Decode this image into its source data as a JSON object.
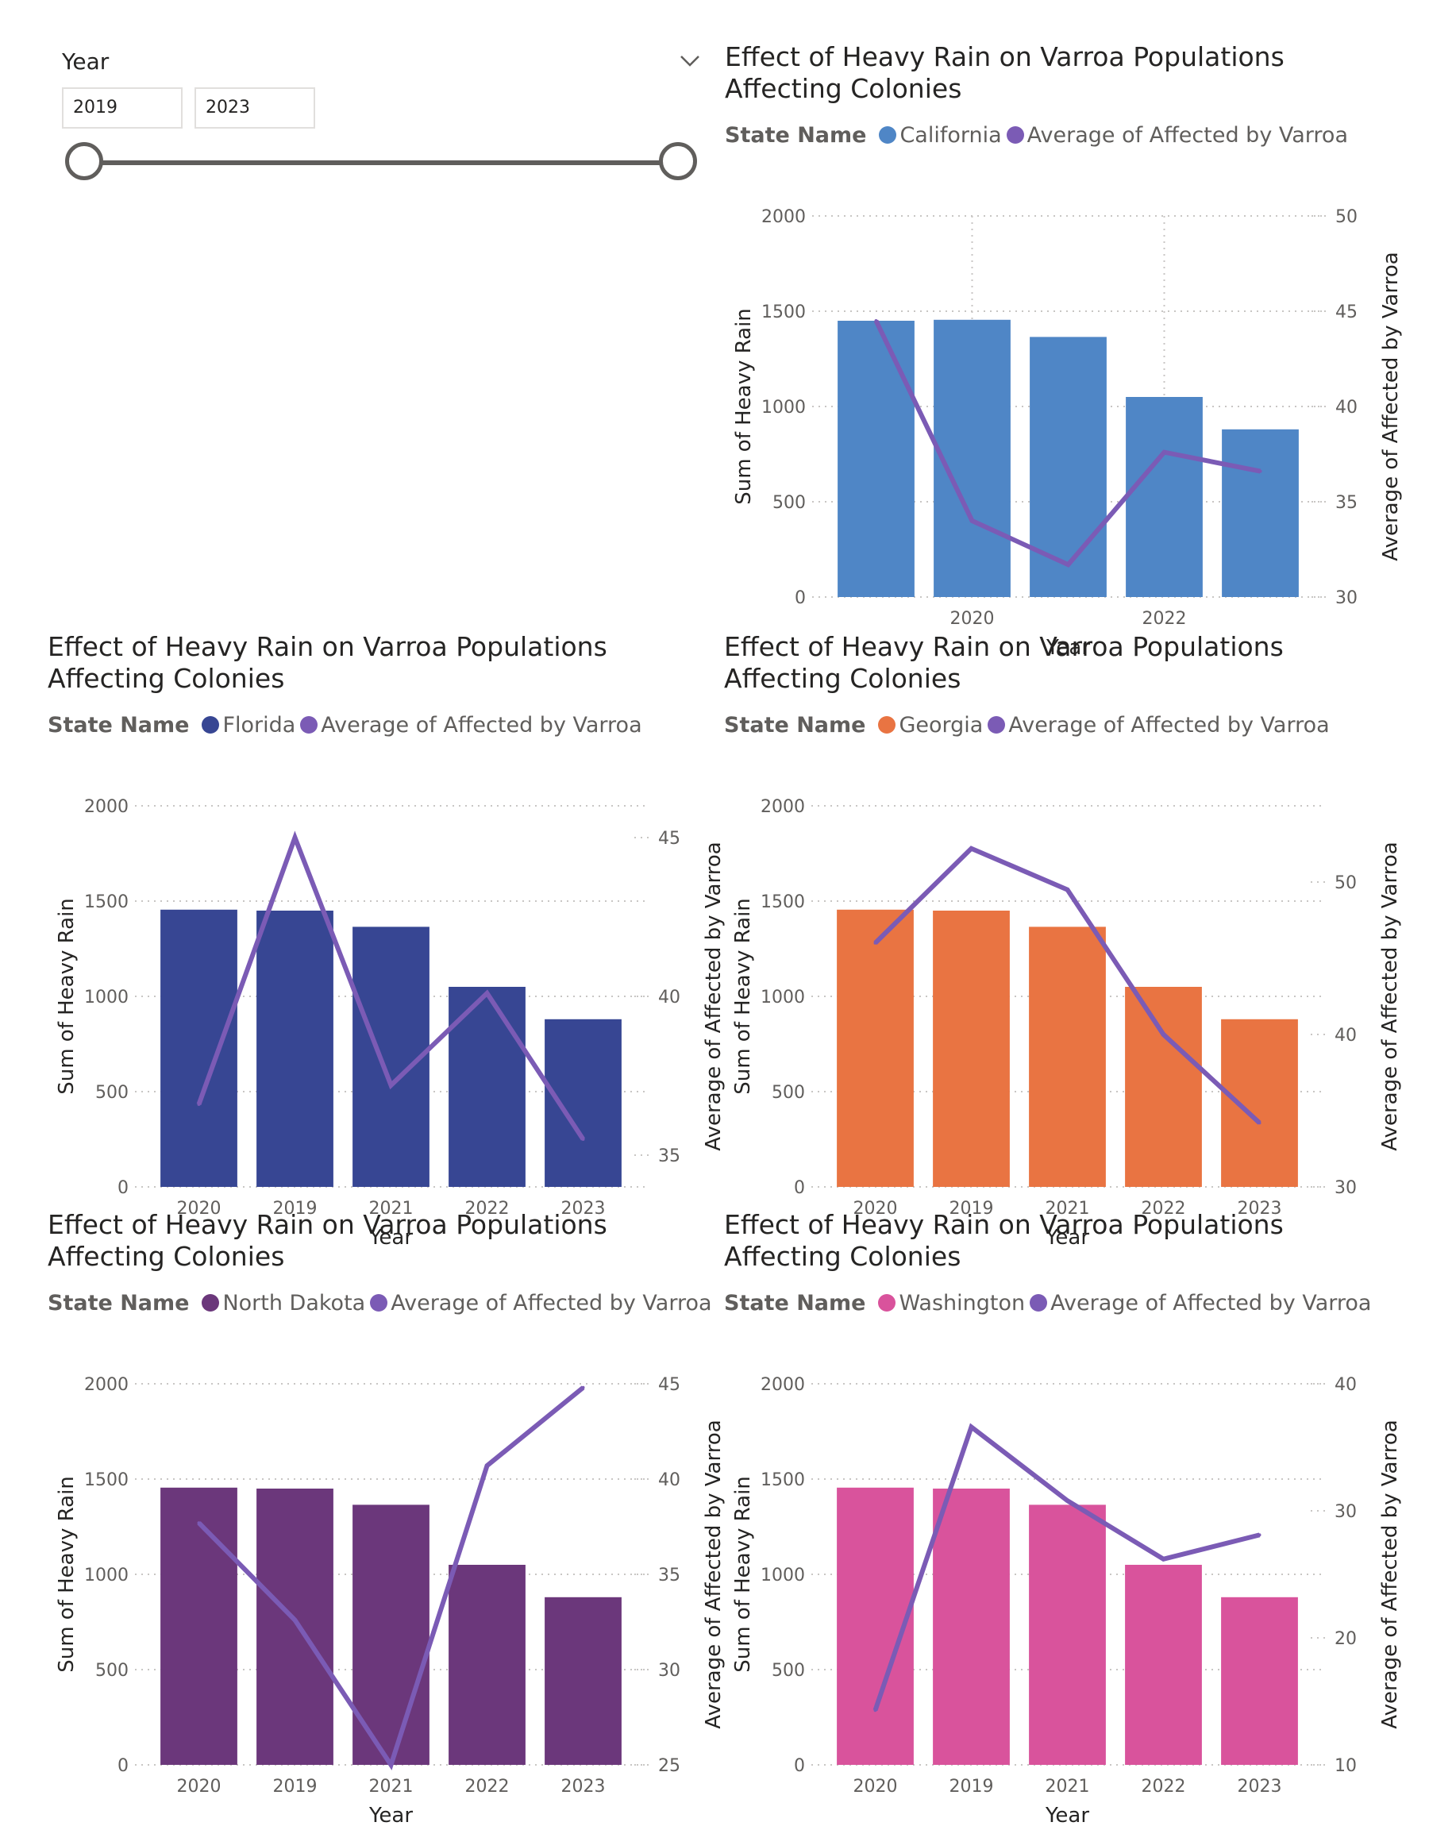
{
  "slicer": {
    "title": "Year",
    "from_value": "2019",
    "to_value": "2023",
    "range": [
      2019,
      2023
    ],
    "icons": [
      "chevron-down-icon"
    ]
  },
  "colors": {
    "line": "#7B5BB5",
    "grid": "#c8c6c4",
    "axis_text": "#605e5c",
    "title_text": "#252423"
  },
  "chart_data": [
    {
      "type": "bar",
      "title": "Effect of Heavy Rain on Varroa Populations Affecting Colonies",
      "legend_title": "State Name",
      "legend_items": [
        "California",
        "Average of Affected by Varroa"
      ],
      "bar_color": "#4f86c6",
      "categories": [
        "",
        "2020",
        "",
        "2022",
        ""
      ],
      "series": [
        {
          "name": "California",
          "axis": "left",
          "values": [
            1450,
            1455,
            1365,
            1050,
            880
          ]
        },
        {
          "name": "Average of Affected by Varroa",
          "axis": "right",
          "kind": "line",
          "values": [
            44.5,
            34.0,
            31.7,
            37.6,
            36.6
          ]
        }
      ],
      "xlabel": "Year",
      "ylabel": "Sum of Heavy Rain",
      "y2label": "Average of Affected by Varroa",
      "ylim": [
        0,
        2000
      ],
      "yticks": [
        "0",
        "500",
        "1000",
        "1500",
        "2000"
      ],
      "y2lim": [
        30,
        50
      ],
      "y2ticks": [
        "30",
        "35",
        "40",
        "45",
        "50"
      ],
      "vertical_gridlines": true
    },
    {
      "type": "bar",
      "title": "Effect of Heavy Rain on Varroa Populations Affecting Colonies",
      "legend_title": "State Name",
      "legend_items": [
        "Florida",
        "Average of Affected by Varroa"
      ],
      "bar_color": "#374693",
      "categories": [
        "2020",
        "2019",
        "2021",
        "2022",
        "2023"
      ],
      "series": [
        {
          "name": "Florida",
          "axis": "left",
          "values": [
            1455,
            1450,
            1365,
            1050,
            880
          ]
        },
        {
          "name": "Average of Affected by Varroa",
          "axis": "right",
          "kind": "line",
          "values": [
            36.6,
            45.0,
            37.2,
            40.1,
            35.5
          ]
        }
      ],
      "xlabel": "Year",
      "ylabel": "Sum of Heavy Rain",
      "y2label": "Average of Affected by Varroa",
      "ylim": [
        0,
        2000
      ],
      "yticks": [
        "0",
        "500",
        "1000",
        "1500",
        "2000"
      ],
      "y2lim": [
        34,
        46
      ],
      "y2ticks": [
        "35",
        "40",
        "45"
      ],
      "vertical_gridlines": false
    },
    {
      "type": "bar",
      "title": "Effect of Heavy Rain on Varroa Populations Affecting Colonies",
      "legend_title": "State Name",
      "legend_items": [
        "Georgia",
        "Average of Affected by Varroa"
      ],
      "bar_color": "#e97442",
      "categories": [
        "2020",
        "2019",
        "2021",
        "2022",
        "2023"
      ],
      "series": [
        {
          "name": "Georgia",
          "axis": "left",
          "values": [
            1455,
            1450,
            1365,
            1050,
            880
          ]
        },
        {
          "name": "Average of Affected by Varroa",
          "axis": "right",
          "kind": "line",
          "values": [
            46.0,
            52.2,
            49.5,
            40.0,
            34.2
          ]
        }
      ],
      "xlabel": "Year",
      "ylabel": "Sum of Heavy Rain",
      "y2label": "Average of Affected by Varroa",
      "ylim": [
        0,
        2000
      ],
      "yticks": [
        "0",
        "500",
        "1000",
        "1500",
        "2000"
      ],
      "y2lim": [
        30,
        55
      ],
      "y2ticks": [
        "30",
        "40",
        "50"
      ],
      "vertical_gridlines": false
    },
    {
      "type": "bar",
      "title": "Effect of Heavy Rain on Varroa Populations Affecting Colonies",
      "legend_title": "State Name",
      "legend_items": [
        "North Dakota",
        "Average of Affected by Varroa"
      ],
      "bar_color": "#6b377b",
      "categories": [
        "2020",
        "2019",
        "2021",
        "2022",
        "2023"
      ],
      "series": [
        {
          "name": "North Dakota",
          "axis": "left",
          "values": [
            1455,
            1450,
            1365,
            1050,
            880
          ]
        },
        {
          "name": "Average of Affected by Varroa",
          "axis": "right",
          "kind": "line",
          "values": [
            37.7,
            32.6,
            25.0,
            40.7,
            44.8
          ]
        }
      ],
      "xlabel": "Year",
      "ylabel": "Sum of Heavy Rain",
      "y2label": "Average of Affected by Varroa",
      "ylim": [
        0,
        2000
      ],
      "yticks": [
        "0",
        "500",
        "1000",
        "1500",
        "2000"
      ],
      "y2lim": [
        25,
        45
      ],
      "y2ticks": [
        "25",
        "30",
        "35",
        "40",
        "45"
      ],
      "vertical_gridlines": false
    },
    {
      "type": "bar",
      "title": "Effect of Heavy Rain on Varroa Populations Affecting Colonies",
      "legend_title": "State Name",
      "legend_items": [
        "Washington",
        "Average of Affected by Varroa"
      ],
      "bar_color": "#d9539c",
      "categories": [
        "2020",
        "2019",
        "2021",
        "2022",
        "2023"
      ],
      "series": [
        {
          "name": "Washington",
          "axis": "left",
          "values": [
            1455,
            1450,
            1365,
            1050,
            880
          ]
        },
        {
          "name": "Average of Affected by Varroa",
          "axis": "right",
          "kind": "line",
          "values": [
            14.3,
            36.6,
            30.8,
            26.2,
            28.1
          ]
        }
      ],
      "xlabel": "Year",
      "ylabel": "Sum of Heavy Rain",
      "y2label": "Average of Affected by Varroa",
      "ylim": [
        0,
        2000
      ],
      "yticks": [
        "0",
        "500",
        "1000",
        "1500",
        "2000"
      ],
      "y2lim": [
        10,
        40
      ],
      "y2ticks": [
        "10",
        "20",
        "30",
        "40"
      ],
      "vertical_gridlines": false
    }
  ]
}
